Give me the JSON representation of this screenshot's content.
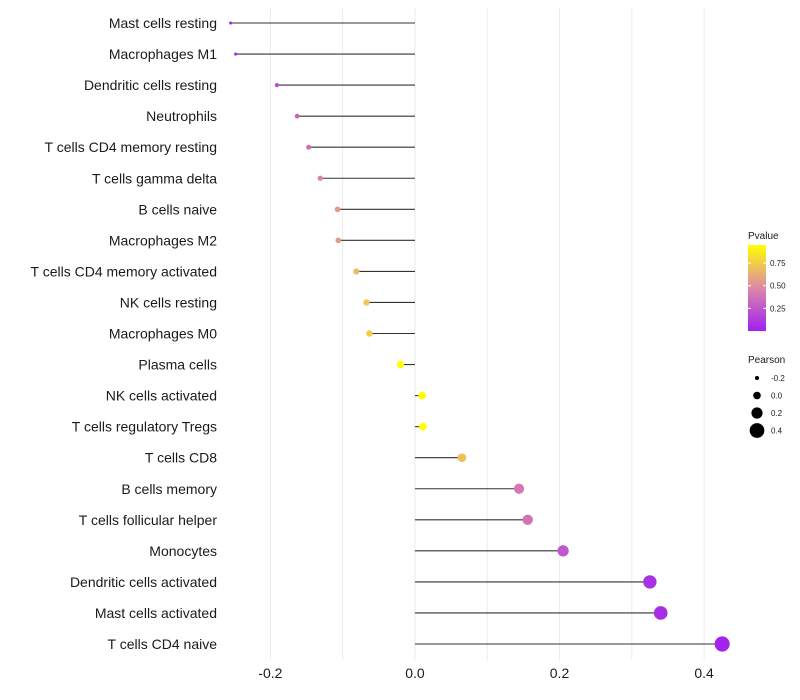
{
  "chart_data": {
    "type": "lollipop",
    "title": "",
    "xlabel": "",
    "ylabel": "",
    "xlim": [
      -0.26,
      0.44
    ],
    "x_ticks": [
      -0.2,
      0.0,
      0.2,
      0.4
    ],
    "x_tick_labels": [
      "-0.2",
      "0.0",
      "0.2",
      "0.4"
    ],
    "categories": [
      "Mast cells resting",
      "Macrophages M1",
      "Dendritic cells resting",
      "Neutrophils",
      "T cells CD4 memory resting",
      "T cells gamma delta",
      "B cells naive",
      "Macrophages M2",
      "T cells CD4 memory activated",
      "NK cells resting",
      "Macrophages M0",
      "Plasma cells",
      "NK cells activated",
      "T cells regulatory  Tregs ",
      "T cells CD8",
      "B cells memory",
      "T cells follicular helper",
      "Monocytes",
      "Dendritic cells activated",
      "Mast cells activated",
      "T cells CD4 naive"
    ],
    "values": [
      -0.255,
      -0.248,
      -0.191,
      -0.163,
      -0.147,
      -0.131,
      -0.107,
      -0.106,
      -0.081,
      -0.067,
      -0.063,
      -0.02,
      0.01,
      0.011,
      0.065,
      0.144,
      0.156,
      0.205,
      0.325,
      0.34,
      0.425
    ],
    "pvalues": [
      0.02,
      0.03,
      0.2,
      0.3,
      0.35,
      0.45,
      0.55,
      0.55,
      0.68,
      0.73,
      0.75,
      0.96,
      0.97,
      0.97,
      0.7,
      0.4,
      0.38,
      0.25,
      0.08,
      0.06,
      0.02
    ],
    "legend": {
      "pvalue": {
        "title": "Pvalue",
        "ticks": [
          0.25,
          0.5,
          0.75
        ],
        "tick_labels": [
          "0.25",
          "0.50",
          "0.75"
        ],
        "range": [
          0.0,
          0.95
        ],
        "color_low": "#a020f0",
        "color_mid": "#dd88aa",
        "color_high": "#ffff00"
      },
      "pearson": {
        "title": "Pearson",
        "values": [
          -0.2,
          0.0,
          0.2,
          0.4
        ],
        "labels": [
          "-0.2",
          "0.0",
          "0.2",
          "0.4"
        ]
      }
    },
    "colors": {
      "grid": "#ececec",
      "stem": "#333333"
    }
  }
}
